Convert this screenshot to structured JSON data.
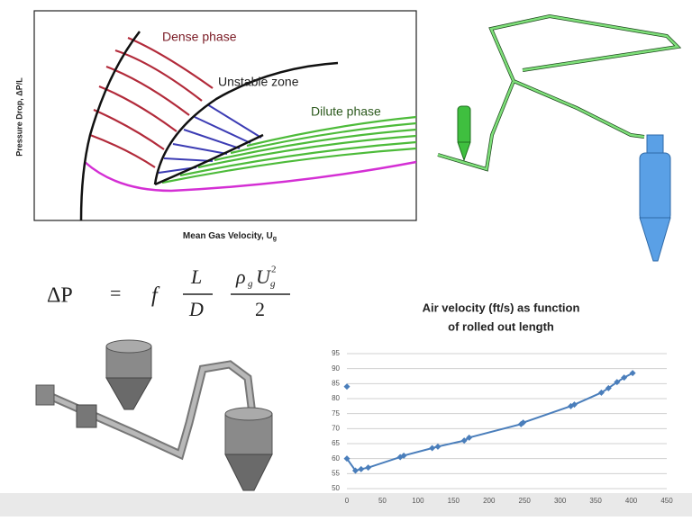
{
  "diagram": {
    "y_label": "Pressure Drop, ΔP/L",
    "x_label": "Mean Gas Velocity, U",
    "x_label_sub": "g",
    "regions": [
      "Dense phase",
      "Unstable zone",
      "Dilute phase"
    ]
  },
  "equation": {
    "lhs": "ΔP",
    "eq": "=",
    "f": "f",
    "num1": "L",
    "den1": "D",
    "rho": "ρ",
    "rho_sub": "g",
    "u": "U",
    "u_sub": "g",
    "u_sup": "2",
    "den2": "2"
  },
  "chart_data": {
    "type": "line",
    "title": [
      "Air velocity (ft/s) as function",
      "of rolled out length"
    ],
    "x": [
      0,
      null,
      0,
      12,
      20,
      30,
      75,
      80,
      120,
      128,
      165,
      172,
      245,
      248,
      315,
      320,
      358,
      368,
      380,
      390,
      402
    ],
    "series": [
      {
        "color": "#4a7ebb",
        "values": [
          84,
          null,
          60,
          56,
          56.5,
          57,
          60.5,
          61,
          63.5,
          64,
          66,
          67,
          71.5,
          72,
          77.5,
          78,
          82,
          83.5,
          85.5,
          87,
          88.5
        ]
      }
    ],
    "xlim": [
      0,
      450
    ],
    "xticks": [
      0,
      50,
      100,
      150,
      200,
      250,
      300,
      350,
      400,
      450
    ],
    "ylim": [
      50,
      95
    ],
    "yticks": [
      50,
      55,
      60,
      65,
      70,
      75,
      80,
      85,
      90,
      95
    ],
    "grid": "y"
  }
}
